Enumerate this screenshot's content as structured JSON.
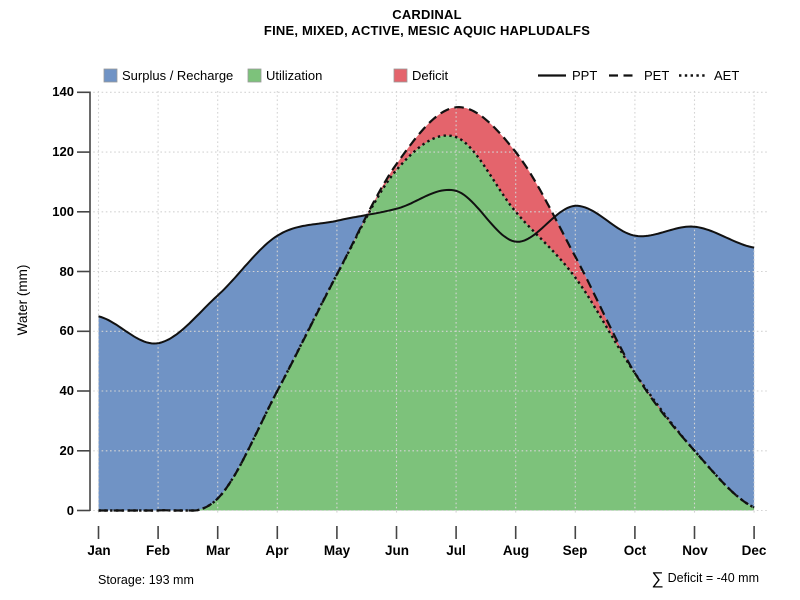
{
  "title": "CARDINAL",
  "subtitle": "FINE, MIXED, ACTIVE, MESIC AQUIC HAPLUDALFS",
  "y_axis": {
    "label": "Water (mm)",
    "ticks": [
      0,
      20,
      40,
      60,
      80,
      100,
      120,
      140
    ]
  },
  "x_axis": {
    "ticks": [
      "Jan",
      "Feb",
      "Mar",
      "Apr",
      "May",
      "Jun",
      "Jul",
      "Aug",
      "Sep",
      "Oct",
      "Nov",
      "Dec"
    ]
  },
  "legend": {
    "areas": [
      {
        "label": "Surplus / Recharge",
        "color": "#7093c5"
      },
      {
        "label": "Utilization",
        "color": "#7dc27b"
      },
      {
        "label": "Deficit",
        "color": "#e4646c"
      }
    ],
    "lines": [
      {
        "label": "PPT",
        "style": "solid"
      },
      {
        "label": "PET",
        "style": "dashed"
      },
      {
        "label": "AET",
        "style": "dotted"
      }
    ]
  },
  "annotations": {
    "storage": "Storage: 193 mm",
    "sigma": "∑",
    "deficit": "Deficit = -40 mm"
  },
  "chart_data": {
    "type": "area",
    "title": "CARDINAL — monthly water balance",
    "x": [
      "Jan",
      "Feb",
      "Mar",
      "Apr",
      "May",
      "Jun",
      "Jul",
      "Aug",
      "Sep",
      "Oct",
      "Nov",
      "Dec"
    ],
    "series": [
      {
        "name": "PPT",
        "style": "solid",
        "values": [
          65,
          56,
          72,
          92,
          97,
          101,
          107,
          90,
          102,
          92,
          95,
          88
        ]
      },
      {
        "name": "PET",
        "style": "dashed",
        "values": [
          0,
          0,
          4,
          40,
          79,
          116,
          135,
          120,
          85,
          46,
          20,
          1
        ]
      },
      {
        "name": "AET",
        "style": "dotted",
        "values": [
          0,
          0,
          4,
          40,
          79,
          114,
          125,
          100,
          78,
          46,
          20,
          1
        ]
      }
    ],
    "areas": [
      {
        "name": "Surplus / Recharge",
        "between": [
          "PPT",
          "PET"
        ],
        "color": "#7093c5"
      },
      {
        "name": "Utilization",
        "under": "AET",
        "color": "#7dc27b"
      },
      {
        "name": "Deficit",
        "between": [
          "PET",
          "AET"
        ],
        "color": "#e4646c"
      }
    ],
    "line_color": "#111111",
    "ylabel": "Water (mm)",
    "ylim": [
      0,
      140
    ],
    "grid": true,
    "legend_position": "top",
    "storage_mm": 193,
    "total_deficit_mm": -40
  }
}
